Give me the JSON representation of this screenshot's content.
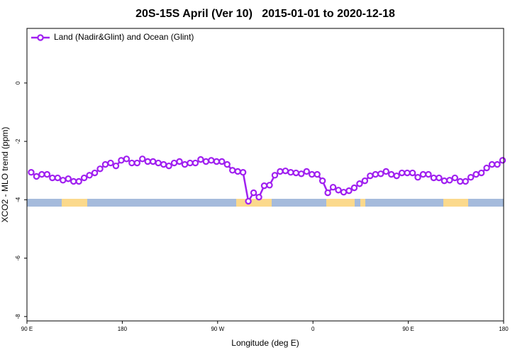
{
  "chart_data": {
    "type": "line",
    "title": "20S-15S April (Ver 10)   2015-01-01 to 2020-12-18",
    "x_label": "Longitude (deg E)",
    "y_label": "XCO2 - MLO trend (ppm)",
    "xlim": [
      90,
      540
    ],
    "xticks": [
      {
        "value": 90,
        "label": "90 E"
      },
      {
        "value": 180,
        "label": "180"
      },
      {
        "value": 270,
        "label": "90 W"
      },
      {
        "value": 360,
        "label": "0"
      },
      {
        "value": 450,
        "label": "90 E"
      },
      {
        "value": 540,
        "label": "180"
      }
    ],
    "ylim": [
      -8.15,
      1.87
    ],
    "yticks": [
      0,
      -2,
      -4,
      -6,
      -8
    ],
    "legend": "top-left",
    "x": [
      94,
      99,
      104,
      109,
      114,
      119,
      124,
      129,
      134,
      139,
      144,
      149,
      154,
      159,
      164,
      169,
      174,
      179,
      184,
      189,
      194,
      199,
      204,
      209,
      214,
      219,
      224,
      229,
      234,
      239,
      244,
      249,
      254,
      259,
      264,
      269,
      274,
      279,
      284,
      289,
      294,
      299,
      304,
      309,
      314,
      319,
      324,
      329,
      334,
      339,
      344,
      349,
      354,
      359,
      364,
      369,
      374,
      379,
      384,
      389,
      394,
      399,
      404,
      409,
      414,
      419,
      424,
      429,
      434,
      439,
      444,
      449,
      454,
      459,
      464,
      469,
      474,
      479,
      484,
      489,
      494,
      499,
      504,
      509,
      514,
      519,
      524,
      529,
      534,
      539
    ],
    "series": [
      {
        "name": "Land (Nadir&Glint) and Ocean (Glint)",
        "color": "#a020f0",
        "values": [
          -3.06,
          -3.2,
          -3.13,
          -3.13,
          -3.25,
          -3.25,
          -3.33,
          -3.28,
          -3.37,
          -3.37,
          -3.25,
          -3.16,
          -3.08,
          -2.94,
          -2.79,
          -2.74,
          -2.84,
          -2.65,
          -2.6,
          -2.74,
          -2.74,
          -2.6,
          -2.69,
          -2.69,
          -2.74,
          -2.79,
          -2.84,
          -2.74,
          -2.69,
          -2.79,
          -2.74,
          -2.74,
          -2.62,
          -2.69,
          -2.65,
          -2.69,
          -2.69,
          -2.79,
          -2.99,
          -3.03,
          -3.06,
          -4.05,
          -3.76,
          -3.91,
          -3.52,
          -3.5,
          -3.16,
          -3.03,
          -3.01,
          -3.06,
          -3.08,
          -3.11,
          -3.03,
          -3.13,
          -3.13,
          -3.35,
          -3.76,
          -3.57,
          -3.67,
          -3.74,
          -3.69,
          -3.59,
          -3.45,
          -3.35,
          -3.18,
          -3.13,
          -3.11,
          -3.03,
          -3.13,
          -3.18,
          -3.08,
          -3.08,
          -3.08,
          -3.23,
          -3.13,
          -3.13,
          -3.25,
          -3.25,
          -3.35,
          -3.33,
          -3.25,
          -3.37,
          -3.37,
          -3.23,
          -3.13,
          -3.08,
          -2.91,
          -2.79,
          -2.79,
          -2.65
        ]
      }
    ]
  }
}
